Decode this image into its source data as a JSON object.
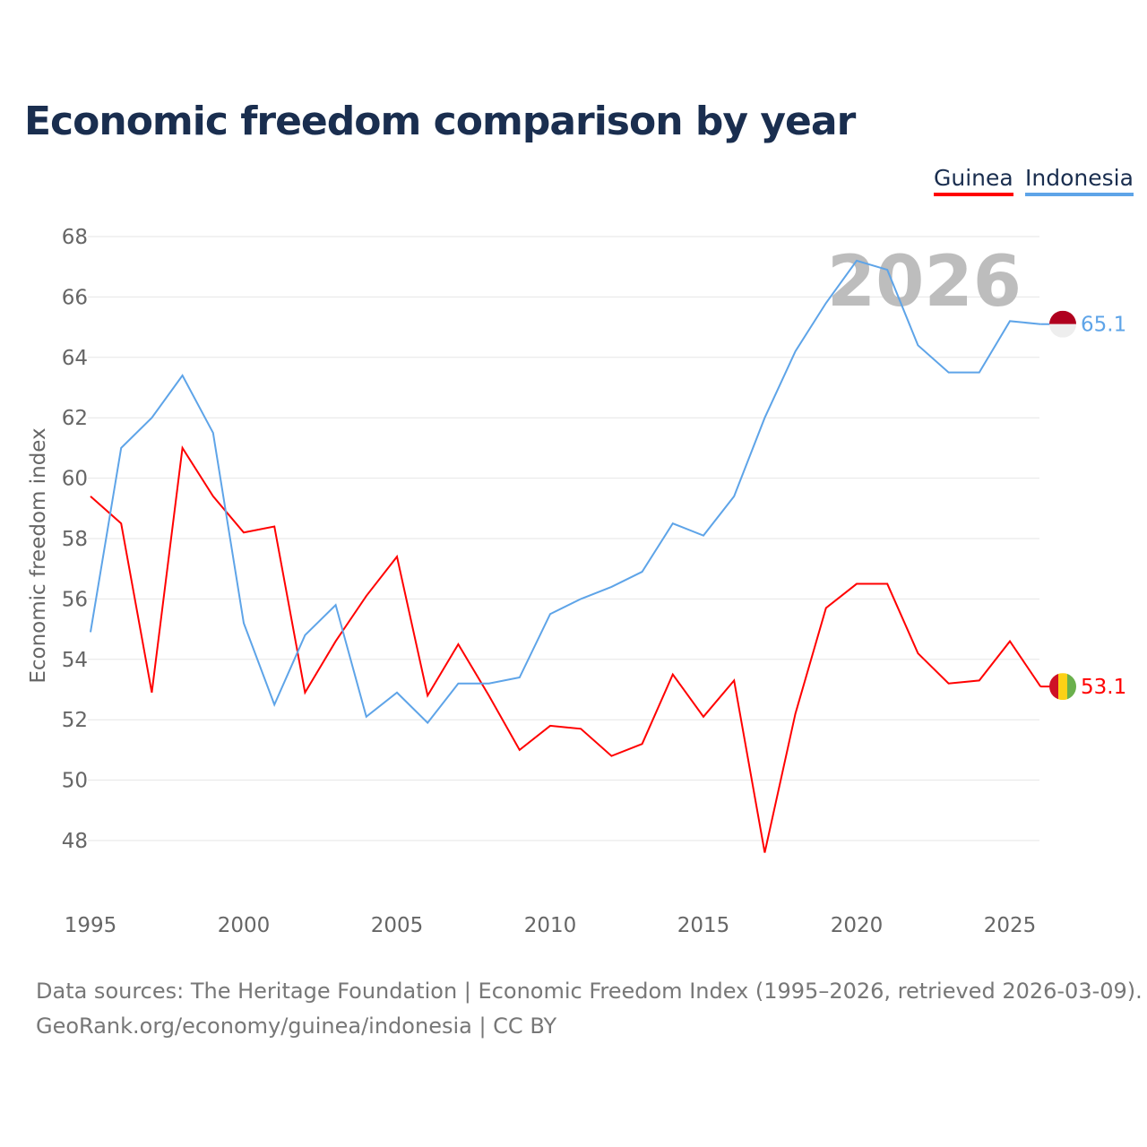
{
  "title": "Economic freedom comparison by year",
  "footer": {
    "line1": "Data sources: The Heritage Foundation | Economic Freedom Index (1995–2026, retrieved 2026-03-09).",
    "line2": "GeoRank.org/economy/guinea/indonesia | CC BY"
  },
  "chart_data": {
    "type": "line",
    "title": "Economic freedom comparison by year",
    "xlabel": "",
    "ylabel": "Economic freedom index",
    "year_watermark": "2026",
    "xlim": [
      1995,
      2026
    ],
    "ylim": [
      46.5,
      68.5
    ],
    "xticks": [
      "1995",
      "2000",
      "2005",
      "2010",
      "2015",
      "2020",
      "2025"
    ],
    "yticks": [
      "48",
      "50",
      "52",
      "54",
      "56",
      "58",
      "60",
      "62",
      "64",
      "66",
      "68"
    ],
    "grid": true,
    "legend_position": "top-right",
    "x": [
      1995,
      1996,
      1997,
      1998,
      1999,
      2000,
      2001,
      2002,
      2003,
      2004,
      2005,
      2006,
      2007,
      2008,
      2009,
      2010,
      2011,
      2012,
      2013,
      2014,
      2015,
      2016,
      2017,
      2018,
      2019,
      2020,
      2021,
      2022,
      2023,
      2024,
      2025,
      2026
    ],
    "series": [
      {
        "name": "Guinea",
        "color": "#ff0000",
        "end_label": "53.1",
        "flag": "guinea-flag",
        "values": [
          59.4,
          58.5,
          52.9,
          61.0,
          59.4,
          58.2,
          58.4,
          52.9,
          54.6,
          56.1,
          57.4,
          52.8,
          54.5,
          52.8,
          51.0,
          51.8,
          51.7,
          50.8,
          51.2,
          53.5,
          52.1,
          53.3,
          47.6,
          52.2,
          55.7,
          56.5,
          56.5,
          54.2,
          53.2,
          53.3,
          54.6,
          53.1
        ]
      },
      {
        "name": "Indonesia",
        "color": "#5ea4e8",
        "end_label": "65.1",
        "flag": "indonesia-flag",
        "values": [
          54.9,
          61.0,
          62.0,
          63.4,
          61.5,
          55.2,
          52.5,
          54.8,
          55.8,
          52.1,
          52.9,
          51.9,
          53.2,
          53.2,
          53.4,
          55.5,
          56.0,
          56.4,
          56.9,
          58.5,
          58.1,
          59.4,
          62.0,
          64.2,
          65.8,
          67.2,
          66.9,
          64.4,
          63.5,
          63.5,
          65.2,
          65.1
        ]
      }
    ]
  }
}
